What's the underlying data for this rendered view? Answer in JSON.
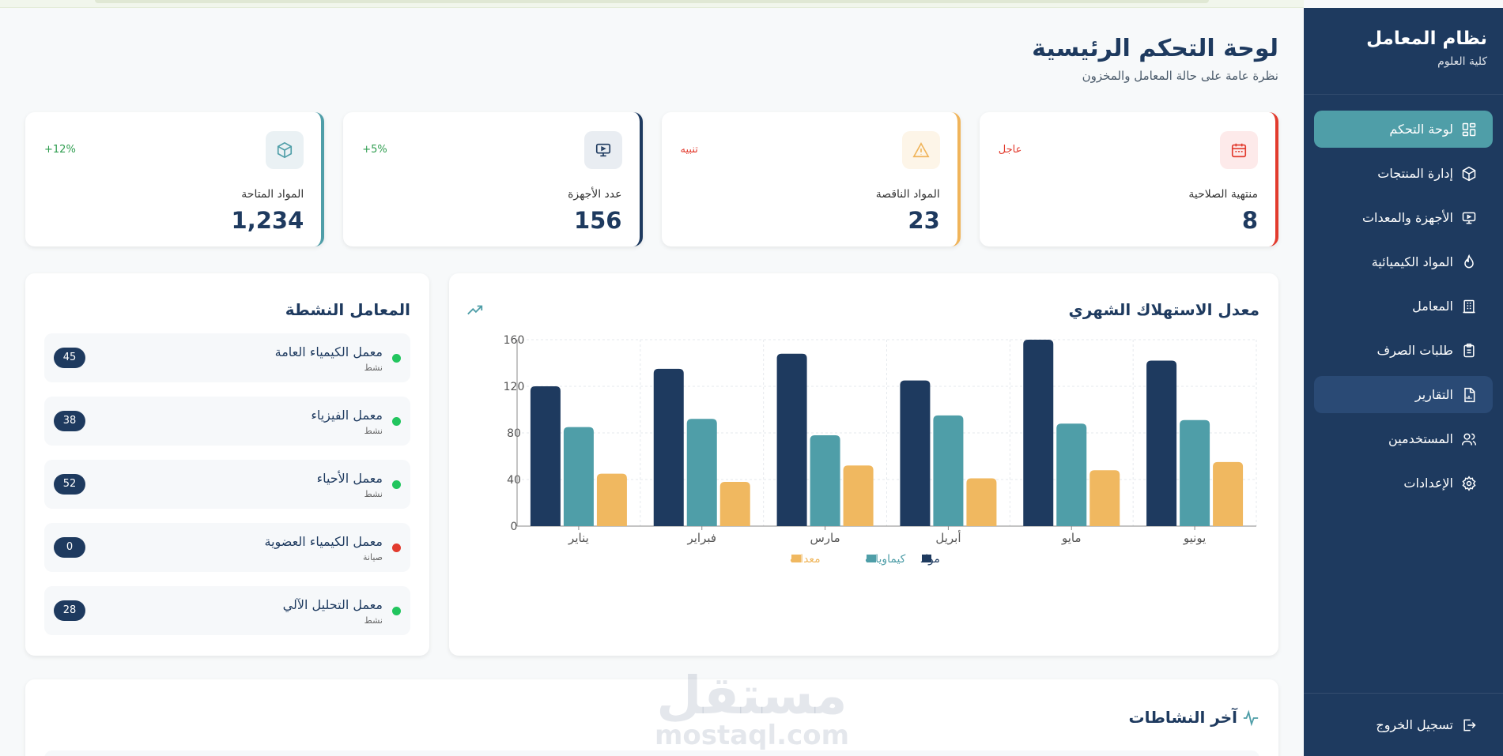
{
  "sidebar": {
    "title": "نظام المعامل",
    "subtitle": "كلية العلوم",
    "items": [
      {
        "label": "لوحة التحكم",
        "icon": "dashboard-icon"
      },
      {
        "label": "إدارة المنتجات",
        "icon": "box-icon"
      },
      {
        "label": "الأجهزة والمعدات",
        "icon": "monitor-icon"
      },
      {
        "label": "المواد الكيميائية",
        "icon": "flame-icon"
      },
      {
        "label": "المعامل",
        "icon": "building-icon"
      },
      {
        "label": "طلبات الصرف",
        "icon": "clipboard-icon"
      },
      {
        "label": "التقارير",
        "icon": "report-icon"
      },
      {
        "label": "المستخدمين",
        "icon": "users-icon"
      },
      {
        "label": "الإعدادات",
        "icon": "gear-icon"
      }
    ],
    "logout": "تسجيل الخروج"
  },
  "header": {
    "title": "لوحة التحكم الرئيسية",
    "subtitle": "نظرة عامة على حالة المعامل والمخزون"
  },
  "stats": [
    {
      "label": "المواد المتاحة",
      "value": "1,234",
      "badge": "12%+",
      "accent": "#4f9ea8",
      "badge_color": "#2e9d4f",
      "icon": "box-icon"
    },
    {
      "label": "عدد الأجهزة",
      "value": "156",
      "badge": "5%+",
      "accent": "#1e3a5f",
      "badge_color": "#2e9d4f",
      "icon": "monitor-icon"
    },
    {
      "label": "المواد الناقصة",
      "value": "23",
      "badge": "تنبيه",
      "accent": "#f0b45a",
      "badge_color": "#e23b2e",
      "icon": "warning-icon"
    },
    {
      "label": "منتهية الصلاحية",
      "value": "8",
      "badge": "عاجل",
      "accent": "#e23b2e",
      "badge_color": "#e23b2e",
      "icon": "calendar-icon"
    }
  ],
  "chart_panel": {
    "title": "معدل الاستهلاك الشهري"
  },
  "chart_data": {
    "type": "bar",
    "categories": [
      "يناير",
      "فبراير",
      "مارس",
      "أبريل",
      "مايو",
      "يونيو"
    ],
    "series": [
      {
        "name": "مواد",
        "color": "#1e3a5f",
        "values": [
          120,
          135,
          148,
          125,
          160,
          142
        ]
      },
      {
        "name": "كيماويات",
        "color": "#4f9ea8",
        "values": [
          85,
          92,
          78,
          95,
          88,
          91
        ]
      },
      {
        "name": "معدات",
        "color": "#f0b860",
        "values": [
          45,
          38,
          52,
          41,
          48,
          55
        ]
      }
    ],
    "yticks": [
      "0",
      "40",
      "80",
      "120",
      "160"
    ],
    "ylim": [
      0,
      160
    ],
    "grid": true,
    "legend": "bottom"
  },
  "labs_panel": {
    "title": "المعامل النشطة",
    "items": [
      {
        "name": "معمل الكيمياء العامة",
        "status": "نشط",
        "count": "45",
        "dot": "#22c55e"
      },
      {
        "name": "معمل الفيزياء",
        "status": "نشط",
        "count": "38",
        "dot": "#22c55e"
      },
      {
        "name": "معمل الأحياء",
        "status": "نشط",
        "count": "52",
        "dot": "#22c55e"
      },
      {
        "name": "معمل الكيمياء العضوية",
        "status": "صيانة",
        "count": "0",
        "dot": "#e23b2e"
      },
      {
        "name": "معمل التحليل الآلي",
        "status": "نشط",
        "count": "28",
        "dot": "#22c55e"
      }
    ]
  },
  "activity_panel": {
    "title": "آخر النشاطات"
  },
  "watermark": {
    "ar": "مستقل",
    "en": "mostaql.com"
  }
}
